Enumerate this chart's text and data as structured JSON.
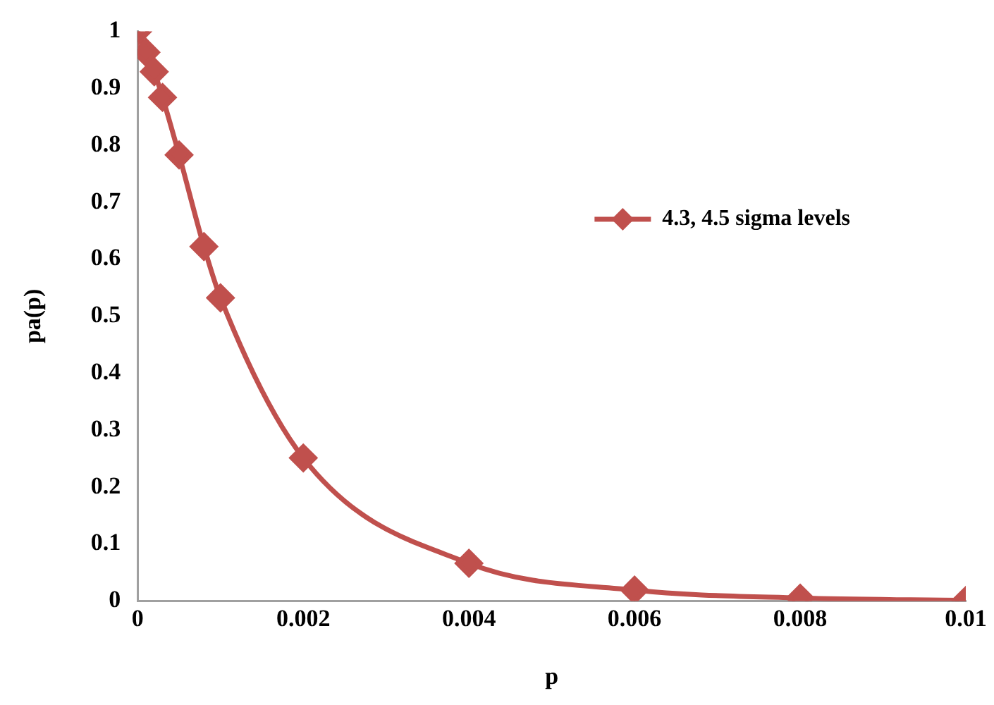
{
  "chart_data": {
    "type": "line",
    "xlabel": "p",
    "ylabel": "pa(p)",
    "x": [
      0,
      0.0001,
      0.0002,
      0.0003,
      0.0005,
      0.0008,
      0.001,
      0.002,
      0.004,
      0.006,
      0.008,
      0.01
    ],
    "series": [
      {
        "name": "4.3, 4.5 sigma levels",
        "color": "#c0504d",
        "values": [
          1,
          0.963,
          0.929,
          0.884,
          0.783,
          0.622,
          0.532,
          0.251,
          0.066,
          0.019,
          0.005,
          0.001
        ]
      }
    ],
    "xlim": [
      0,
      0.01
    ],
    "xticks": [
      0,
      0.002,
      0.004,
      0.006,
      0.008,
      0.01
    ],
    "ylim": [
      0,
      1
    ],
    "yticks": [
      0,
      0.1,
      0.2,
      0.3,
      0.4,
      0.5,
      0.6,
      0.7,
      0.8,
      0.9,
      1
    ],
    "grid": false,
    "legend": "top right",
    "marker": "diamond",
    "line_style": "solid"
  }
}
